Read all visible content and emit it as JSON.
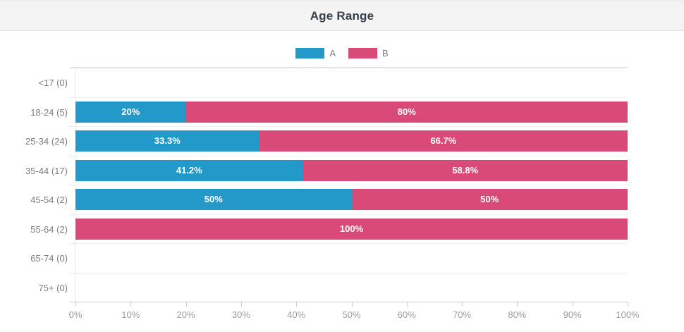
{
  "header": {
    "title": "Age Range"
  },
  "legend": {
    "items": [
      {
        "label": "A",
        "color": "#2299c8"
      },
      {
        "label": "B",
        "color": "#d94a78"
      }
    ]
  },
  "chart_data": {
    "type": "bar",
    "orientation": "horizontal",
    "stacked": true,
    "title": "Age Range",
    "xlabel": "",
    "ylabel": "",
    "xlim": [
      0,
      100
    ],
    "grid": "row-separators",
    "legend_position": "top-center",
    "categories": [
      "<17 (0)",
      "18-24 (5)",
      "25-34 (24)",
      "35-44 (17)",
      "45-54 (2)",
      "55-64 (2)",
      "65-74 (0)",
      "75+ (0)"
    ],
    "series": [
      {
        "name": "A",
        "color": "#2299c8",
        "values": [
          0,
          20,
          33.3,
          41.2,
          50,
          0,
          0,
          0
        ]
      },
      {
        "name": "B",
        "color": "#d94a78",
        "values": [
          0,
          80,
          66.7,
          58.8,
          50,
          100,
          0,
          0
        ]
      }
    ],
    "bar_labels": [
      [],
      [
        "20%",
        "80%"
      ],
      [
        "33.3%",
        "66.7%"
      ],
      [
        "41.2%",
        "58.8%"
      ],
      [
        "50%",
        "50%"
      ],
      [
        "100%"
      ],
      [],
      []
    ],
    "x_ticks": [
      "0%",
      "10%",
      "20%",
      "30%",
      "40%",
      "50%",
      "60%",
      "70%",
      "80%",
      "90%",
      "100%"
    ]
  }
}
